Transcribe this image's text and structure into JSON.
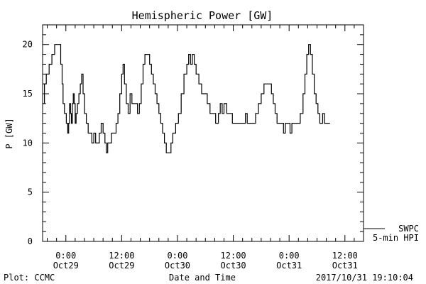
{
  "chart_data": {
    "type": "line",
    "title": "Hemispheric Power [GW]",
    "ylabel": "P [GW]",
    "xlabel": "Date and Time",
    "ylim": [
      0,
      22
    ],
    "xlim_hours": [
      -5,
      64
    ],
    "yticks": [
      0,
      5,
      10,
      15,
      20
    ],
    "xticks": [
      {
        "hour": 0,
        "time": "0:00",
        "date": "Oct29"
      },
      {
        "hour": 12,
        "time": "12:00",
        "date": "Oct29"
      },
      {
        "hour": 24,
        "time": "0:00",
        "date": "Oct30"
      },
      {
        "hour": 36,
        "time": "12:00",
        "date": "Oct30"
      },
      {
        "hour": 48,
        "time": "0:00",
        "date": "Oct31"
      },
      {
        "hour": 60,
        "time": "12:00",
        "date": "Oct31"
      }
    ],
    "legend": {
      "position": "bottom-right",
      "lines": [
        "SWPC",
        "5-min HPI"
      ]
    },
    "grid": false,
    "series": [
      {
        "name": "SWPC",
        "color": "#000000",
        "points": [
          [
            -5.0,
            14
          ],
          [
            -4.6,
            16
          ],
          [
            -4.2,
            17
          ],
          [
            -3.6,
            18
          ],
          [
            -3.0,
            19
          ],
          [
            -2.4,
            20
          ],
          [
            -1.4,
            20
          ],
          [
            -1.1,
            18
          ],
          [
            -0.8,
            16
          ],
          [
            -0.6,
            14
          ],
          [
            -0.3,
            13
          ],
          [
            0.1,
            12
          ],
          [
            0.4,
            11
          ],
          [
            0.6,
            12
          ],
          [
            0.8,
            14
          ],
          [
            1.0,
            13
          ],
          [
            1.2,
            12
          ],
          [
            1.4,
            14
          ],
          [
            1.6,
            15
          ],
          [
            1.8,
            14
          ],
          [
            2.0,
            12
          ],
          [
            2.2,
            13
          ],
          [
            2.5,
            14
          ],
          [
            2.8,
            15
          ],
          [
            3.1,
            16
          ],
          [
            3.4,
            17
          ],
          [
            3.7,
            15
          ],
          [
            4.0,
            13
          ],
          [
            4.4,
            12
          ],
          [
            4.8,
            11
          ],
          [
            5.2,
            11
          ],
          [
            5.6,
            10
          ],
          [
            6.0,
            11
          ],
          [
            6.4,
            10
          ],
          [
            6.8,
            10
          ],
          [
            7.2,
            11
          ],
          [
            7.6,
            12
          ],
          [
            8.0,
            11
          ],
          [
            8.4,
            10
          ],
          [
            8.7,
            9
          ],
          [
            9.0,
            10
          ],
          [
            9.4,
            10
          ],
          [
            9.8,
            11
          ],
          [
            10.4,
            11
          ],
          [
            10.8,
            12
          ],
          [
            11.2,
            13
          ],
          [
            11.6,
            15
          ],
          [
            12.0,
            17
          ],
          [
            12.3,
            18
          ],
          [
            12.6,
            16
          ],
          [
            13.0,
            14
          ],
          [
            13.4,
            13
          ],
          [
            13.8,
            15
          ],
          [
            14.2,
            14
          ],
          [
            14.8,
            14
          ],
          [
            15.4,
            13
          ],
          [
            15.8,
            14
          ],
          [
            16.2,
            16
          ],
          [
            16.6,
            18
          ],
          [
            17.0,
            19
          ],
          [
            17.6,
            19
          ],
          [
            18.0,
            18
          ],
          [
            18.4,
            17
          ],
          [
            18.8,
            16
          ],
          [
            19.2,
            15
          ],
          [
            19.6,
            14
          ],
          [
            20.0,
            13
          ],
          [
            20.4,
            12
          ],
          [
            20.8,
            11
          ],
          [
            21.2,
            10
          ],
          [
            21.6,
            9
          ],
          [
            22.2,
            9
          ],
          [
            22.6,
            10
          ],
          [
            23.0,
            11
          ],
          [
            23.6,
            12
          ],
          [
            24.2,
            13
          ],
          [
            24.8,
            15
          ],
          [
            25.4,
            17
          ],
          [
            26.0,
            18
          ],
          [
            26.4,
            19
          ],
          [
            26.8,
            18
          ],
          [
            27.2,
            19
          ],
          [
            27.6,
            18
          ],
          [
            28.0,
            17
          ],
          [
            28.6,
            16
          ],
          [
            29.2,
            15
          ],
          [
            29.8,
            15
          ],
          [
            30.4,
            14
          ],
          [
            31.0,
            13
          ],
          [
            31.6,
            13
          ],
          [
            32.2,
            12
          ],
          [
            32.8,
            13
          ],
          [
            33.2,
            14
          ],
          [
            33.6,
            13
          ],
          [
            34.0,
            14
          ],
          [
            34.6,
            13
          ],
          [
            35.2,
            13
          ],
          [
            35.8,
            12
          ],
          [
            36.4,
            12
          ],
          [
            37.0,
            12
          ],
          [
            37.6,
            12
          ],
          [
            38.2,
            12
          ],
          [
            38.6,
            13
          ],
          [
            39.0,
            12
          ],
          [
            39.6,
            12
          ],
          [
            40.2,
            12
          ],
          [
            40.8,
            13
          ],
          [
            41.4,
            14
          ],
          [
            42.0,
            15
          ],
          [
            42.6,
            16
          ],
          [
            43.2,
            16
          ],
          [
            43.8,
            16
          ],
          [
            44.2,
            15
          ],
          [
            44.6,
            14
          ],
          [
            45.0,
            13
          ],
          [
            45.4,
            12
          ],
          [
            45.8,
            12
          ],
          [
            46.4,
            12
          ],
          [
            46.8,
            11
          ],
          [
            47.2,
            12
          ],
          [
            47.8,
            12
          ],
          [
            48.2,
            11
          ],
          [
            48.6,
            12
          ],
          [
            49.2,
            12
          ],
          [
            49.8,
            12
          ],
          [
            50.4,
            13
          ],
          [
            51.0,
            15
          ],
          [
            51.4,
            17
          ],
          [
            51.8,
            19
          ],
          [
            52.2,
            20
          ],
          [
            52.6,
            19
          ],
          [
            53.0,
            17
          ],
          [
            53.4,
            15
          ],
          [
            53.8,
            14
          ],
          [
            54.2,
            13
          ],
          [
            54.6,
            12
          ],
          [
            55.2,
            13
          ],
          [
            55.6,
            12
          ],
          [
            56.2,
            12
          ],
          [
            56.8,
            12
          ]
        ]
      }
    ]
  },
  "footer": {
    "left": "Plot: CCMC",
    "right": "2017/10/31 19:10:04"
  }
}
